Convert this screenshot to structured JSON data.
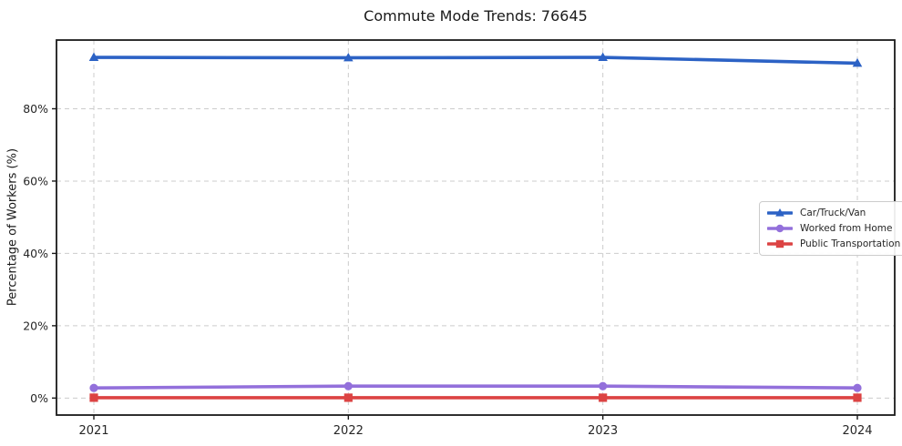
{
  "chart_data": {
    "type": "line",
    "title": "Commute Mode Trends: 76645",
    "xlabel": "",
    "ylabel": "Percentage of Workers (%)",
    "categories": [
      "2021",
      "2022",
      "2023",
      "2024"
    ],
    "series": [
      {
        "name": "Car/Truck/Van",
        "color": "#2c62c5",
        "marker": "triangle",
        "values": [
          94.2,
          94.1,
          94.2,
          92.6
        ]
      },
      {
        "name": "Worked from Home",
        "color": "#9370db",
        "marker": "circle",
        "values": [
          2.8,
          3.3,
          3.3,
          2.8
        ]
      },
      {
        "name": "Public Transportation",
        "color": "#dc4343",
        "marker": "square",
        "values": [
          0.1,
          0.1,
          0.1,
          0.1
        ]
      }
    ],
    "ylim": [
      -4.7,
      99.0
    ],
    "yticks": [
      0,
      20,
      40,
      60,
      80
    ],
    "ytick_labels": [
      "0%",
      "20%",
      "40%",
      "60%",
      "80%"
    ],
    "grid": true,
    "grid_style": "dashed",
    "grid_color": "#cccccc",
    "frame_color": "#1a1a1a",
    "tick_label_color": "#262626",
    "legend_position": "center-right"
  }
}
